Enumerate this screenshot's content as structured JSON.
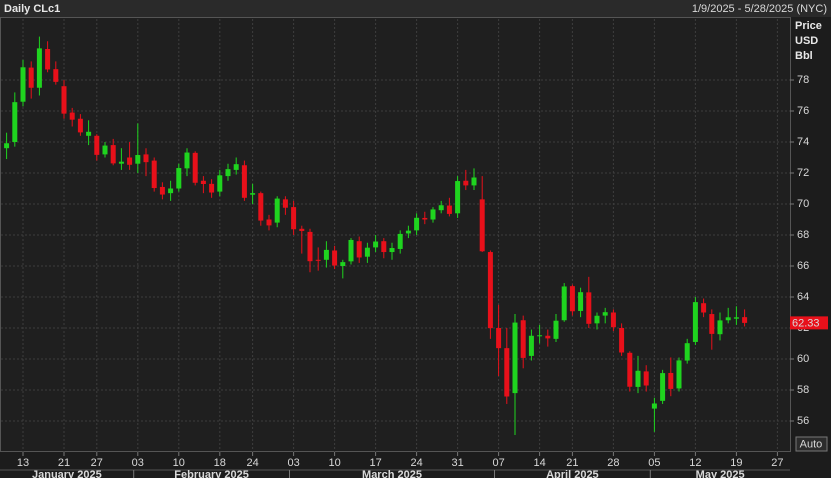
{
  "chart_data": {
    "type": "candlestick",
    "title": "Daily CLc1",
    "date_range": "1/9/2025 - 5/28/2025 (NYC)",
    "axis_header": [
      "Price",
      "USD",
      "Bbl"
    ],
    "button": "Auto",
    "categories": [
      null,
      null,
      "13",
      null,
      null,
      null,
      null,
      "21",
      null,
      null,
      null,
      "27",
      null,
      null,
      null,
      null,
      "03",
      null,
      null,
      null,
      null,
      "10",
      null,
      null,
      null,
      null,
      "18",
      null,
      null,
      null,
      "24",
      null,
      null,
      null,
      null,
      "03",
      null,
      null,
      null,
      null,
      "10",
      null,
      null,
      null,
      null,
      "17",
      null,
      null,
      null,
      null,
      "24",
      null,
      null,
      null,
      null,
      "31",
      null,
      null,
      null,
      null,
      "07",
      null,
      null,
      null,
      null,
      "14",
      null,
      null,
      null,
      "21",
      null,
      null,
      null,
      null,
      "28",
      null,
      null,
      null,
      null,
      "05",
      null,
      null,
      null,
      null,
      "12",
      null,
      null,
      null,
      null,
      "19",
      null,
      null,
      null,
      null,
      "27",
      null
    ],
    "months": [
      "January 2025",
      "February 2025",
      "March 2025",
      "April 2025",
      "May 2025"
    ],
    "open": [
      73.6,
      74.0,
      76.6,
      78.8,
      77.5,
      80.0,
      78.7,
      77.6,
      75.9,
      75.5,
      74.4,
      74.4,
      73.2,
      73.8,
      72.6,
      73.0,
      72.6,
      73.2,
      72.8,
      71.1,
      70.7,
      71.0,
      72.3,
      73.3,
      71.5,
      71.3,
      70.8,
      71.8,
      72.2,
      72.5,
      70.6,
      70.7,
      69.0,
      68.8,
      70.3,
      69.8,
      68.4,
      68.2,
      66.4,
      66.4,
      67.0,
      66.0,
      66.3,
      67.6,
      66.6,
      67.2,
      67.6,
      66.9,
      67.1,
      68.1,
      68.3,
      69.1,
      69.0,
      69.6,
      69.9,
      69.4,
      71.5,
      71.2,
      70.3,
      66.9,
      62.0,
      60.7,
      57.8,
      62.5,
      60.2,
      61.5,
      61.5,
      61.3,
      62.5,
      64.7,
      63.1,
      64.3,
      62.3,
      62.8,
      63.0,
      62.0,
      60.4,
      58.2,
      59.2,
      56.8,
      57.3,
      59.1,
      58.1,
      59.9,
      61.1,
      63.6,
      62.9,
      61.6,
      62.5,
      62.6,
      62.7,
      null,
      null,
      null,
      null,
      null
    ],
    "high": [
      74.6,
      77.2,
      79.3,
      79.2,
      80.8,
      80.5,
      79.2,
      78.0,
      76.2,
      75.8,
      75.4,
      74.5,
      74.0,
      74.2,
      73.6,
      74.0,
      75.2,
      73.6,
      73.0,
      71.4,
      71.5,
      72.6,
      73.6,
      73.4,
      71.8,
      71.6,
      72.2,
      72.6,
      73.0,
      72.8,
      71.3,
      70.8,
      69.3,
      70.5,
      70.5,
      70.2,
      68.6,
      68.4,
      67.2,
      67.6,
      67.3,
      66.4,
      67.8,
      67.9,
      67.5,
      68.0,
      67.8,
      67.5,
      68.3,
      68.6,
      69.4,
      69.5,
      69.8,
      70.2,
      70.4,
      71.8,
      72.2,
      72.3,
      71.8,
      67.0,
      63.5,
      62.0,
      62.9,
      62.8,
      61.9,
      62.2,
      61.9,
      62.9,
      64.9,
      64.8,
      64.6,
      65.3,
      63.0,
      63.3,
      63.2,
      62.3,
      60.5,
      60.2,
      59.6,
      57.5,
      59.3,
      60.1,
      60.1,
      61.3,
      64.0,
      63.9,
      63.2,
      63.0,
      63.3,
      63.4,
      63.2,
      null,
      null,
      null,
      null,
      null
    ],
    "low": [
      72.9,
      73.7,
      76.3,
      76.8,
      77.0,
      78.5,
      77.7,
      75.5,
      75.0,
      74.4,
      73.8,
      72.8,
      73.0,
      72.5,
      72.2,
      72.2,
      72.0,
      71.8,
      70.8,
      70.3,
      70.2,
      70.8,
      71.8,
      71.2,
      70.7,
      70.4,
      70.5,
      71.5,
      71.9,
      70.2,
      70.0,
      68.6,
      68.3,
      68.5,
      69.3,
      68.0,
      66.8,
      65.6,
      65.7,
      65.9,
      65.8,
      65.2,
      66.1,
      66.2,
      66.2,
      66.9,
      66.5,
      66.4,
      66.8,
      67.8,
      68.0,
      68.7,
      68.8,
      69.4,
      69.2,
      69.1,
      70.9,
      70.9,
      66.9,
      61.3,
      58.9,
      57.1,
      55.1,
      59.4,
      59.9,
      61.0,
      60.8,
      61.1,
      62.4,
      62.8,
      62.7,
      62.0,
      61.9,
      62.3,
      61.8,
      60.2,
      57.9,
      57.8,
      57.9,
      55.3,
      57.1,
      57.6,
      57.9,
      59.7,
      60.9,
      62.7,
      60.6,
      61.2,
      62.3,
      62.2,
      62.1,
      null,
      null,
      null,
      null,
      null
    ],
    "close": [
      73.92,
      76.57,
      78.82,
      77.5,
      80.04,
      78.68,
      77.88,
      75.83,
      75.44,
      74.62,
      74.66,
      73.17,
      73.77,
      72.62,
      72.73,
      72.53,
      73.16,
      72.7,
      71.03,
      70.61,
      71.0,
      72.32,
      73.32,
      71.37,
      71.29,
      70.74,
      71.85,
      72.25,
      72.57,
      70.4,
      70.7,
      68.93,
      68.62,
      70.35,
      69.76,
      68.37,
      68.26,
      66.31,
      66.36,
      67.04,
      66.03,
      66.25,
      67.68,
      66.55,
      67.18,
      67.58,
      66.9,
      67.16,
      68.07,
      68.28,
      69.11,
      69.0,
      69.65,
      69.92,
      69.36,
      71.48,
      71.2,
      71.71,
      66.95,
      61.99,
      60.7,
      57.58,
      62.35,
      60.07,
      61.5,
      61.53,
      61.33,
      62.47,
      64.68,
      63.08,
      64.31,
      62.27,
      62.79,
      63.02,
      62.05,
      60.42,
      58.21,
      59.24,
      58.29,
      57.13,
      59.09,
      58.07,
      59.91,
      61.02,
      63.67,
      63.0,
      61.62,
      62.49,
      62.69,
      62.69,
      62.33,
      null,
      null,
      null,
      null,
      null
    ],
    "up_color": "#1fd41f",
    "down_color": "#e8101a",
    "last_price": 62.33,
    "ylim": [
      54,
      82
    ],
    "yticks": [
      56,
      58,
      60,
      62,
      64,
      66,
      68,
      70,
      72,
      74,
      76,
      78
    ],
    "grid": true
  }
}
